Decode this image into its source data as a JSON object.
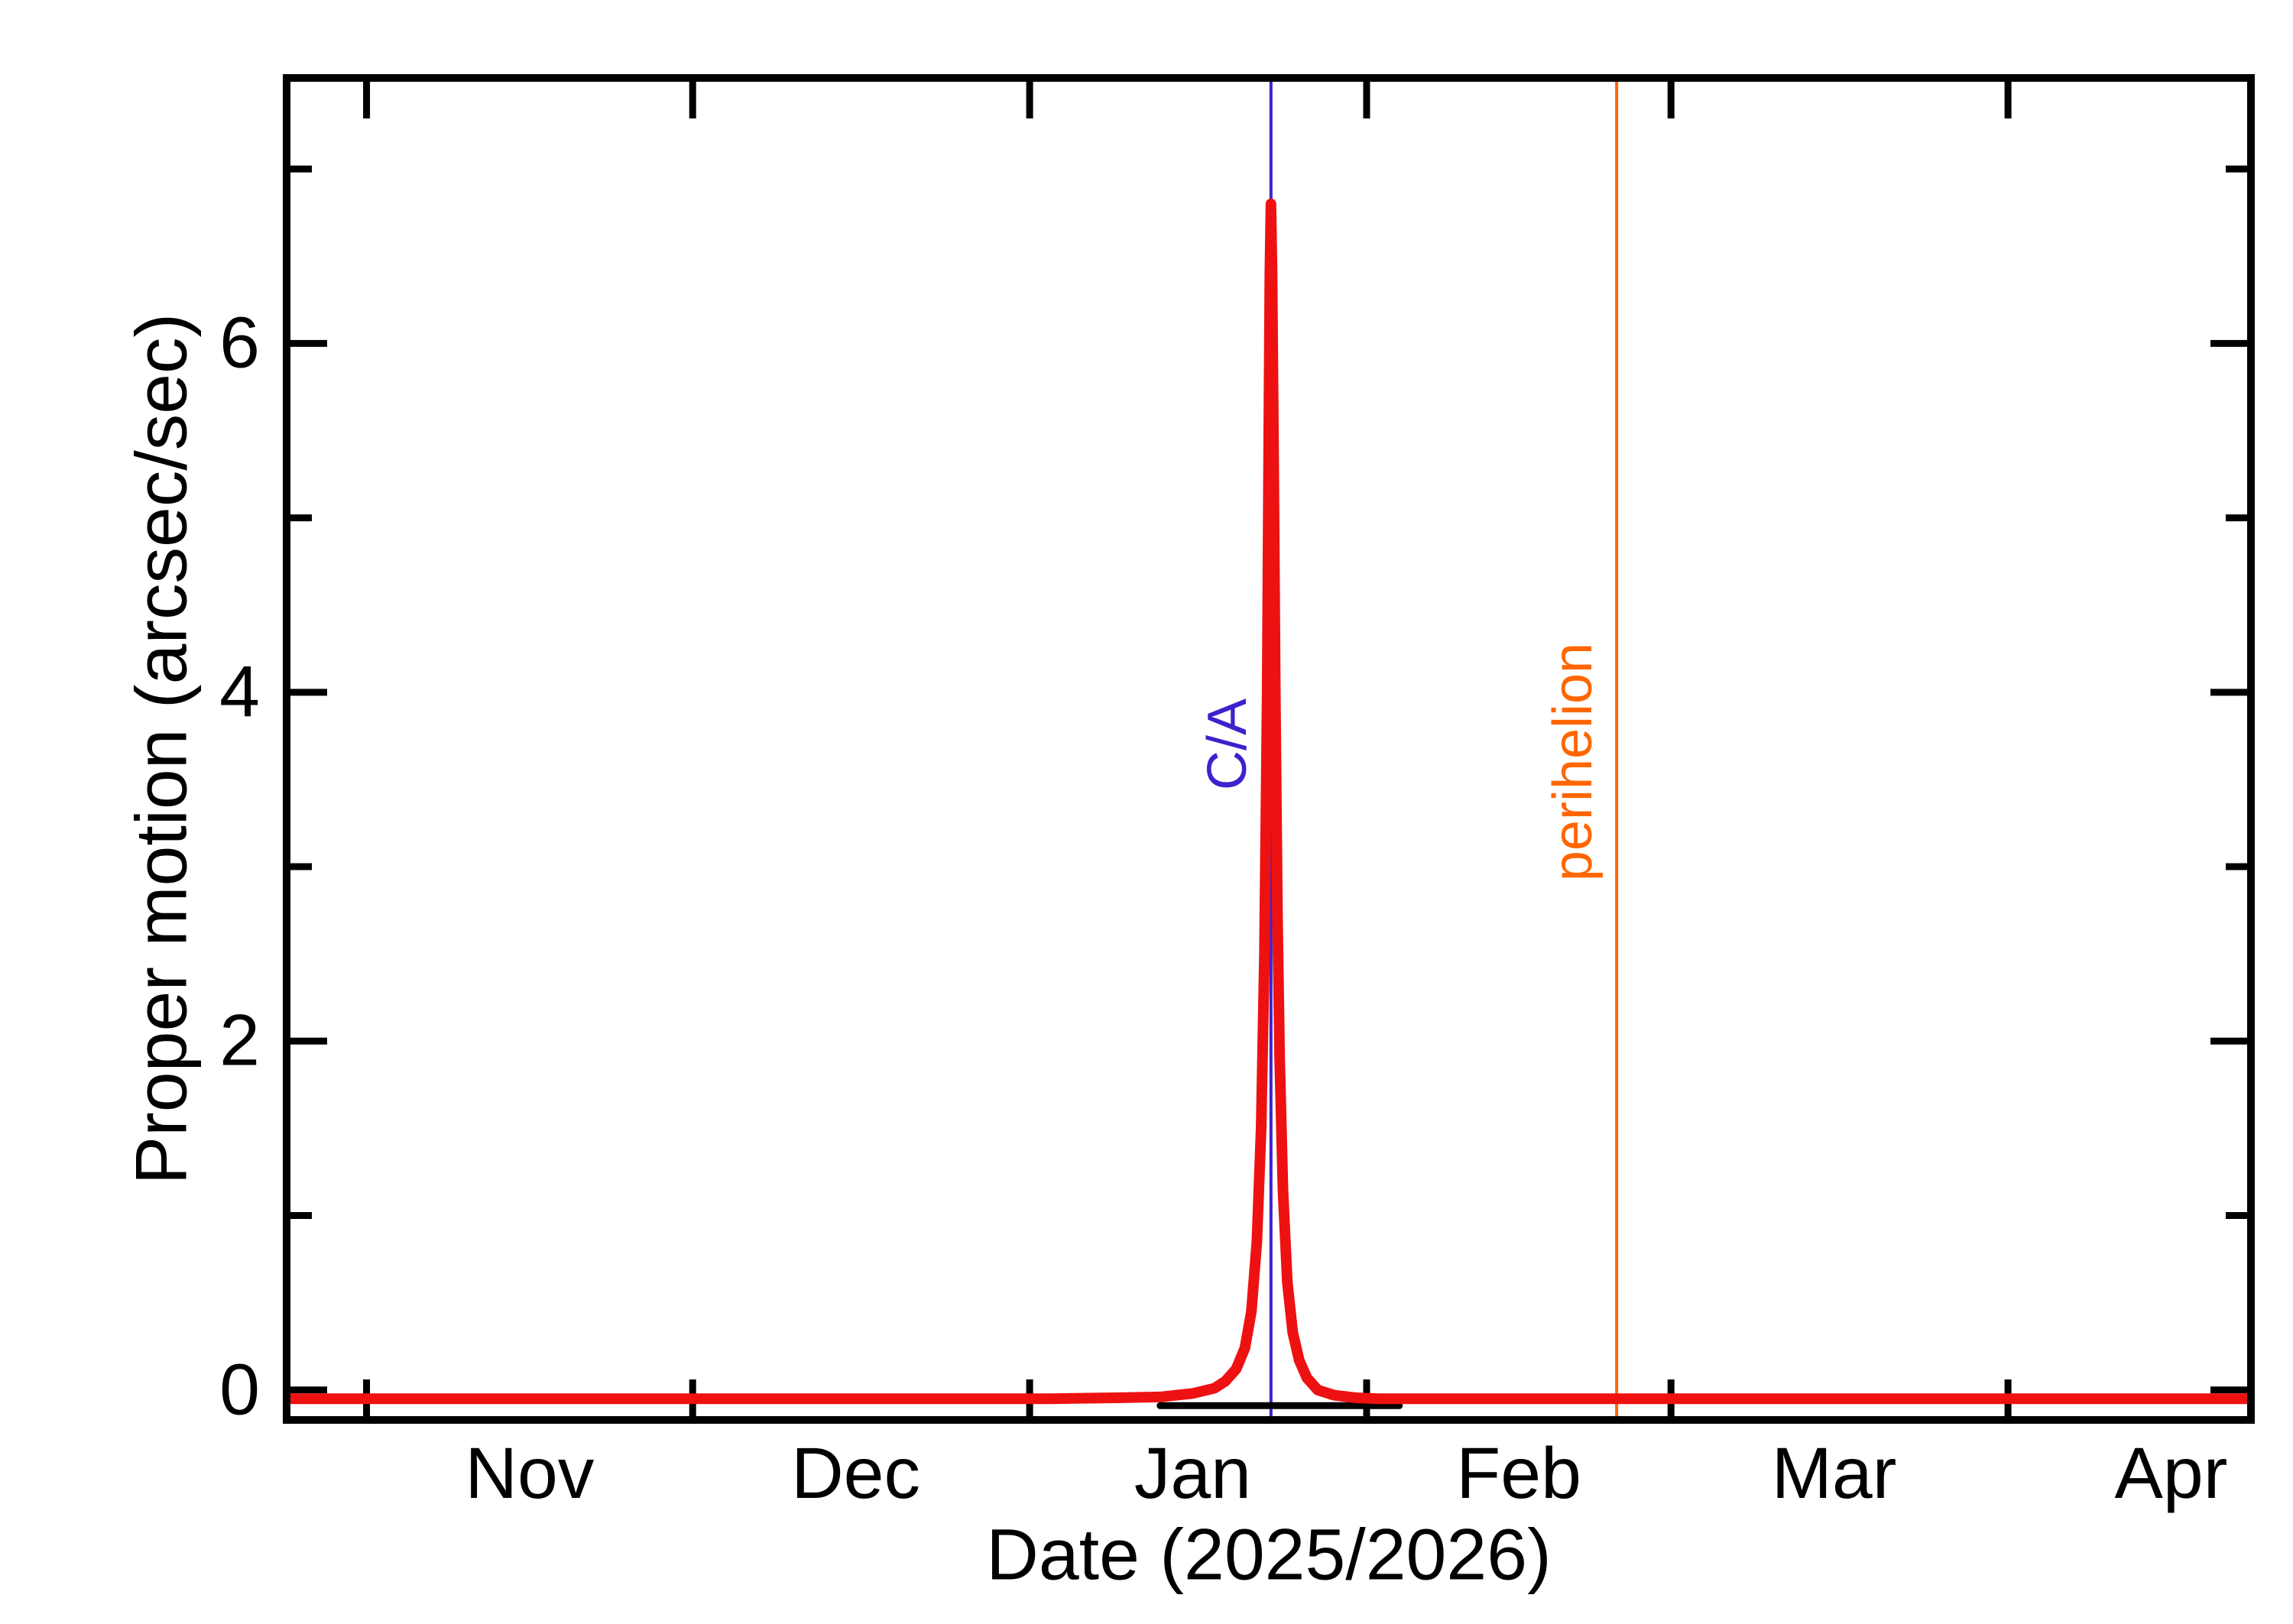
{
  "figure": {
    "background": "#ffffff",
    "frame_color": "#000000"
  },
  "chart_data": {
    "type": "line",
    "title": "",
    "xlabel": "Date (2025/2026)",
    "ylabel": "Proper motion (arcsec/sec)",
    "x_unit": "days from left edge of plot (late Oct 2025)",
    "x_domain_days": [
      0,
      180
    ],
    "month_tick_days": [
      7,
      37,
      68,
      99,
      127,
      158
    ],
    "x_tick_labels": [
      "Nov",
      "Dec",
      "Jan",
      "Feb",
      "Mar",
      "Apr"
    ],
    "x_label_days": [
      22,
      52,
      83,
      113,
      142,
      173
    ],
    "ylim": [
      -0.15,
      7.5
    ],
    "y_major_ticks": [
      0,
      2,
      4,
      6
    ],
    "y_minor_ticks": [
      1,
      3,
      5,
      7
    ],
    "grid": "off",
    "legend": "none",
    "peak": {
      "day": 90.2,
      "value": 6.8
    },
    "series": [
      {
        "name": "baseline-black-curve",
        "color": "#000000",
        "width": 9,
        "points": [
          [
            80,
            -0.09
          ],
          [
            102,
            -0.09
          ]
        ]
      },
      {
        "name": "proper-motion-curve",
        "color": "#ee1111",
        "width": 14,
        "points": [
          [
            0,
            -0.05
          ],
          [
            15,
            -0.05
          ],
          [
            30,
            -0.05
          ],
          [
            45,
            -0.05
          ],
          [
            60,
            -0.05
          ],
          [
            70,
            -0.05
          ],
          [
            76,
            -0.045
          ],
          [
            80,
            -0.04
          ],
          [
            83,
            -0.02
          ],
          [
            85,
            0.01
          ],
          [
            86,
            0.05
          ],
          [
            87,
            0.12
          ],
          [
            87.8,
            0.24
          ],
          [
            88.4,
            0.45
          ],
          [
            88.9,
            0.85
          ],
          [
            89.3,
            1.5
          ],
          [
            89.6,
            2.5
          ],
          [
            89.85,
            4.0
          ],
          [
            90.0,
            5.5
          ],
          [
            90.1,
            6.4
          ],
          [
            90.2,
            6.8
          ],
          [
            90.3,
            6.4
          ],
          [
            90.45,
            5.3
          ],
          [
            90.6,
            4.0
          ],
          [
            90.8,
            2.7
          ],
          [
            91.0,
            1.9
          ],
          [
            91.3,
            1.15
          ],
          [
            91.7,
            0.62
          ],
          [
            92.2,
            0.33
          ],
          [
            92.8,
            0.17
          ],
          [
            93.5,
            0.07
          ],
          [
            94.5,
            0.0
          ],
          [
            96,
            -0.03
          ],
          [
            98,
            -0.045
          ],
          [
            100,
            -0.05
          ],
          [
            110,
            -0.05
          ],
          [
            125,
            -0.05
          ],
          [
            140,
            -0.05
          ],
          [
            155,
            -0.05
          ],
          [
            170,
            -0.05
          ],
          [
            180,
            -0.05
          ]
        ]
      }
    ],
    "annotations": [
      {
        "label": "C/A",
        "slug": "ca",
        "day": 90.2,
        "color": "#3c22cc",
        "label_y_value": 3.7
      },
      {
        "label": "perihelion",
        "slug": "perihelion",
        "day": 122,
        "color": "#ff6600",
        "label_y_value": 3.6
      }
    ]
  }
}
